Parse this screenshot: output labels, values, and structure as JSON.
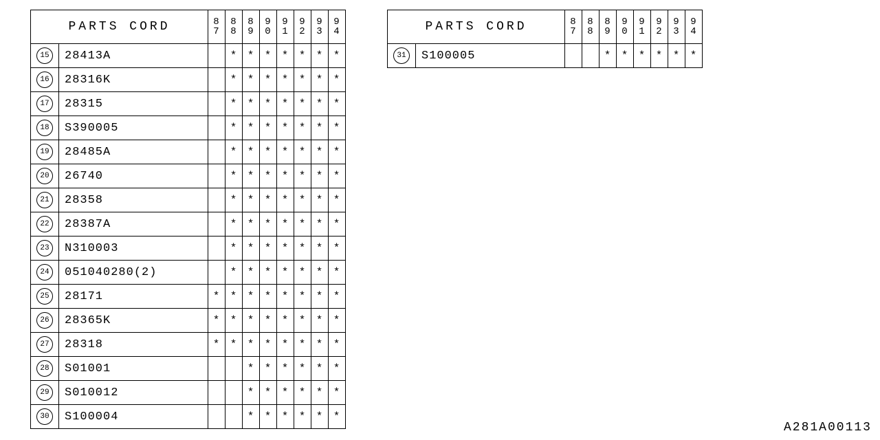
{
  "doc_id": "A281A00113",
  "header_label": "PARTS CORD",
  "year_columns": [
    "87",
    "88",
    "89",
    "90",
    "91",
    "92",
    "93",
    "94"
  ],
  "asterisk": "*",
  "colors": {
    "background": "#ffffff",
    "text": "#000000",
    "border": "#000000"
  },
  "table1": {
    "rows": [
      {
        "ref": "15",
        "code": "28413A",
        "marks": [
          0,
          1,
          1,
          1,
          1,
          1,
          1,
          1
        ]
      },
      {
        "ref": "16",
        "code": "28316K",
        "marks": [
          0,
          1,
          1,
          1,
          1,
          1,
          1,
          1
        ]
      },
      {
        "ref": "17",
        "code": "28315",
        "marks": [
          0,
          1,
          1,
          1,
          1,
          1,
          1,
          1
        ]
      },
      {
        "ref": "18",
        "code": "S390005",
        "marks": [
          0,
          1,
          1,
          1,
          1,
          1,
          1,
          1
        ]
      },
      {
        "ref": "19",
        "code": "28485A",
        "marks": [
          0,
          1,
          1,
          1,
          1,
          1,
          1,
          1
        ]
      },
      {
        "ref": "20",
        "code": "26740",
        "marks": [
          0,
          1,
          1,
          1,
          1,
          1,
          1,
          1
        ]
      },
      {
        "ref": "21",
        "code": "28358",
        "marks": [
          0,
          1,
          1,
          1,
          1,
          1,
          1,
          1
        ]
      },
      {
        "ref": "22",
        "code": "28387A",
        "marks": [
          0,
          1,
          1,
          1,
          1,
          1,
          1,
          1
        ]
      },
      {
        "ref": "23",
        "code": "N310003",
        "marks": [
          0,
          1,
          1,
          1,
          1,
          1,
          1,
          1
        ]
      },
      {
        "ref": "24",
        "code": "051040280(2)",
        "marks": [
          0,
          1,
          1,
          1,
          1,
          1,
          1,
          1
        ]
      },
      {
        "ref": "25",
        "code": "28171",
        "marks": [
          1,
          1,
          1,
          1,
          1,
          1,
          1,
          1
        ]
      },
      {
        "ref": "26",
        "code": "28365K",
        "marks": [
          1,
          1,
          1,
          1,
          1,
          1,
          1,
          1
        ]
      },
      {
        "ref": "27",
        "code": "28318",
        "marks": [
          1,
          1,
          1,
          1,
          1,
          1,
          1,
          1
        ]
      },
      {
        "ref": "28",
        "code": "S01001",
        "marks": [
          0,
          0,
          1,
          1,
          1,
          1,
          1,
          1
        ]
      },
      {
        "ref": "29",
        "code": "S010012",
        "marks": [
          0,
          0,
          1,
          1,
          1,
          1,
          1,
          1
        ]
      },
      {
        "ref": "30",
        "code": "S100004",
        "marks": [
          0,
          0,
          1,
          1,
          1,
          1,
          1,
          1
        ]
      }
    ]
  },
  "table2": {
    "rows": [
      {
        "ref": "31",
        "code": "S100005",
        "marks": [
          0,
          0,
          1,
          1,
          1,
          1,
          1,
          1
        ]
      }
    ]
  }
}
